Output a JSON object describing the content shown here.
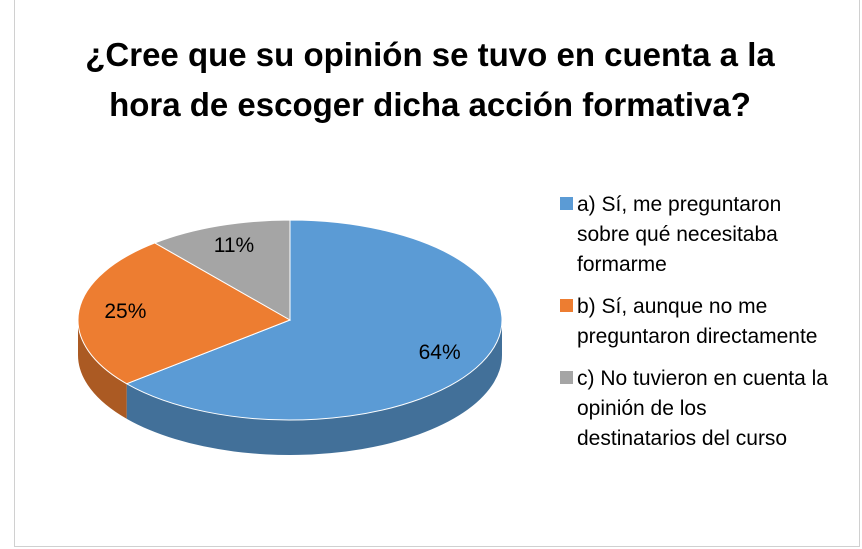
{
  "chart_data": {
    "type": "pie",
    "title": "¿Cree que su opinión se tuvo en cuenta a la hora de escoger dicha acción formativa?",
    "categories": [
      "a) Sí, me preguntaron sobre qué necesitaba formarme",
      "b) Sí, aunque no me preguntaron directamente",
      "c) No tuvieron en cuenta la opinión de los destinatarios del curso"
    ],
    "values": [
      64,
      25,
      11
    ],
    "value_labels": [
      "64%",
      "25%",
      "11%"
    ],
    "colors": [
      "#5b9bd5",
      "#ed7d31",
      "#a5a5a5"
    ],
    "legend": "right"
  }
}
